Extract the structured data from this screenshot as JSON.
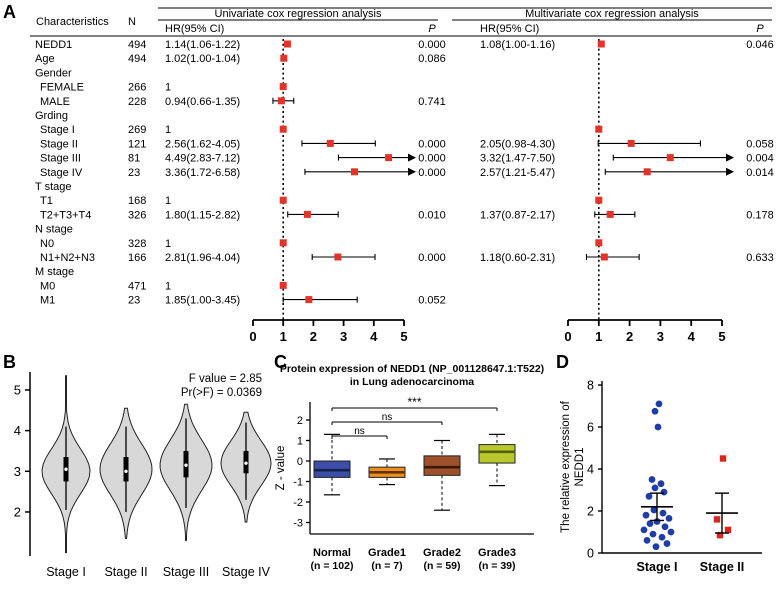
{
  "panel_labels": {
    "a": "A",
    "b": "B",
    "c": "C",
    "d": "D"
  },
  "chart_data": [
    {
      "id": "forest",
      "type": "table",
      "title_uni": "Univariate cox regression analysis",
      "title_multi": "Multivariate cox regression analysis",
      "col_characteristics": "Characteristics",
      "col_n": "N",
      "col_hr": "HR(95% CI)",
      "col_p": "P",
      "axis_ticks": [
        0,
        1,
        2,
        3,
        4,
        5
      ],
      "ref_line": 1,
      "marker_color": "#e2342b",
      "rows": [
        {
          "name": "NEDD1",
          "n": "494",
          "uni_text": "1.14(1.06-1.22)",
          "uni": [
            1.14,
            1.06,
            1.22
          ],
          "uni_p": "0.000",
          "multi_text": "1.08(1.00-1.16)",
          "multi": [
            1.08,
            1.0,
            1.16
          ],
          "multi_p": "0.046"
        },
        {
          "name": "Age",
          "n": "494",
          "uni_text": "1.02(1.00-1.04)",
          "uni": [
            1.02,
            1.0,
            1.04
          ],
          "uni_p": "0.086"
        },
        {
          "name": "Gender",
          "group": true
        },
        {
          "name": "FEMALE",
          "n": "266",
          "uni_text": "1",
          "uni_ref": true,
          "indent": true
        },
        {
          "name": "MALE",
          "n": "228",
          "uni_text": "0.94(0.66-1.35)",
          "uni": [
            0.94,
            0.66,
            1.35
          ],
          "uni_p": "0.741",
          "indent": true
        },
        {
          "name": "Grding",
          "group": true
        },
        {
          "name": "Stage I",
          "n": "269",
          "uni_text": "1",
          "uni_ref": true,
          "multi_ref": true,
          "indent": true
        },
        {
          "name": "Stage II",
          "n": "121",
          "uni_text": "2.56(1.62-4.05)",
          "uni": [
            2.56,
            1.62,
            4.05
          ],
          "uni_p": "0.000",
          "multi_text": "2.05(0.98-4.30)",
          "multi": [
            2.05,
            0.98,
            4.3
          ],
          "multi_p": "0.058",
          "indent": true
        },
        {
          "name": "Stage III",
          "n": "81",
          "uni_text": "4.49(2.83-7.12)",
          "uni": [
            4.49,
            2.83,
            7.12
          ],
          "uni_p": "0.000",
          "multi_text": "3.32(1.47-7.50)",
          "multi": [
            3.32,
            1.47,
            7.5
          ],
          "multi_p": "0.004",
          "indent": true
        },
        {
          "name": "Stage IV",
          "n": "23",
          "uni_text": "3.36(1.72-6.58)",
          "uni": [
            3.36,
            1.72,
            6.58
          ],
          "uni_p": "0.000",
          "multi_text": "2.57(1.21-5.47)",
          "multi": [
            2.57,
            1.21,
            5.47
          ],
          "multi_p": "0.014",
          "indent": true
        },
        {
          "name": "T stage",
          "group": true
        },
        {
          "name": "T1",
          "n": "168",
          "uni_text": "1",
          "uni_ref": true,
          "multi_ref": true,
          "indent": true
        },
        {
          "name": "T2+T3+T4",
          "n": "326",
          "uni_text": "1.80(1.15-2.82)",
          "uni": [
            1.8,
            1.15,
            2.82
          ],
          "uni_p": "0.010",
          "multi_text": "1.37(0.87-2.17)",
          "multi": [
            1.37,
            0.87,
            2.17
          ],
          "multi_p": "0.178",
          "indent": true
        },
        {
          "name": "N stage",
          "group": true
        },
        {
          "name": "N0",
          "n": "328",
          "uni_text": "1",
          "uni_ref": true,
          "multi_ref": true,
          "indent": true
        },
        {
          "name": "N1+N2+N3",
          "n": "166",
          "uni_text": "2.81(1.96-4.04)",
          "uni": [
            2.81,
            1.96,
            4.04
          ],
          "uni_p": "0.000",
          "multi_text": "1.18(0.60-2.31)",
          "multi": [
            1.18,
            0.6,
            2.31
          ],
          "multi_p": "0.633",
          "indent": true
        },
        {
          "name": "M stage",
          "group": true
        },
        {
          "name": "M0",
          "n": "471",
          "uni_text": "1",
          "uni_ref": true,
          "indent": true
        },
        {
          "name": "M1",
          "n": "23",
          "uni_text": "1.85(1.00-3.45)",
          "uni": [
            1.85,
            1.0,
            3.45
          ],
          "uni_p": "0.052",
          "indent": true
        }
      ]
    },
    {
      "id": "violin",
      "type": "violin",
      "annotation_line1": "F value = 2.85",
      "annotation_line2": "Pr(>F) = 0.0369",
      "categories": [
        "Stage I",
        "Stage II",
        "Stage III",
        "Stage IV"
      ],
      "yticks": [
        2,
        3,
        4,
        5
      ],
      "fill": "#d8d8d8",
      "violins": [
        {
          "top": 5.35,
          "bottom": 1.0,
          "mode": 3.0,
          "sigma": 0.55,
          "maxw": 24,
          "q1": 2.75,
          "q3": 3.35,
          "med": 3.05,
          "wlo": 2.05,
          "whi": 4.1
        },
        {
          "top": 4.55,
          "bottom": 1.35,
          "mode": 3.05,
          "sigma": 0.62,
          "maxw": 26,
          "q1": 2.75,
          "q3": 3.35,
          "med": 3.0,
          "wlo": 2.0,
          "whi": 4.1
        },
        {
          "top": 4.65,
          "bottom": 1.3,
          "mode": 3.15,
          "sigma": 0.62,
          "maxw": 26,
          "q1": 2.85,
          "q3": 3.5,
          "med": 3.15,
          "wlo": 2.1,
          "whi": 4.3
        },
        {
          "top": 4.45,
          "bottom": 1.75,
          "mode": 3.2,
          "sigma": 0.55,
          "maxw": 25,
          "q1": 2.95,
          "q3": 3.5,
          "med": 3.2,
          "wlo": 2.3,
          "whi": 4.2
        }
      ]
    },
    {
      "id": "box",
      "type": "box",
      "title_line1": "Protein expression of NEDD1 (NP_001128647.1:T522)",
      "title_line2": "in Lung adenocarcinoma",
      "ylabel": "Z - value",
      "yticks": [
        2,
        1,
        0,
        -1,
        -2,
        -3
      ],
      "categories": [
        "Normal",
        "Grade1",
        "Grade2",
        "Grade3"
      ],
      "counts": [
        "(n = 102)",
        "(n = 7)",
        "(n = 59)",
        "(n = 39)"
      ],
      "colors": [
        "#3c4ea8",
        "#ef8d1f",
        "#9c512a",
        "#b9c92d"
      ],
      "median_colors": [
        "#14204d",
        "#5e3500",
        "#3a1705",
        "#55600a"
      ],
      "boxes": [
        {
          "lo": -1.65,
          "q1": -0.8,
          "med": -0.45,
          "q3": 0.0,
          "hi": 1.3
        },
        {
          "lo": -1.15,
          "q1": -0.8,
          "med": -0.55,
          "q3": -0.3,
          "hi": 0.1
        },
        {
          "lo": -2.4,
          "q1": -0.7,
          "med": -0.3,
          "q3": 0.25,
          "hi": 1.0
        },
        {
          "lo": -1.2,
          "q1": -0.1,
          "med": 0.45,
          "q3": 0.8,
          "hi": 1.3
        }
      ],
      "comparisons": [
        {
          "a": 0,
          "b": 1,
          "label": "ns"
        },
        {
          "a": 0,
          "b": 2,
          "label": "ns"
        },
        {
          "a": 0,
          "b": 3,
          "label": "***"
        }
      ]
    },
    {
      "id": "scatter",
      "type": "scatter",
      "ylabel_line1": "The relative expression of",
      "ylabel_line2": "NEDD1",
      "yticks": [
        0,
        2,
        4,
        6,
        8
      ],
      "groups": [
        {
          "label": "Stage I",
          "color": "#1f3da8",
          "marker": "circle",
          "mean": 2.2,
          "err_lo": 1.55,
          "err_hi": 2.85,
          "points": [
            [
              7.1,
              2
            ],
            [
              6.75,
              -2
            ],
            [
              6.0,
              1
            ],
            [
              3.5,
              -5
            ],
            [
              3.3,
              4
            ],
            [
              3.1,
              -2
            ],
            [
              2.9,
              7
            ],
            [
              2.7,
              -8
            ],
            [
              2.05,
              -3
            ],
            [
              1.9,
              6
            ],
            [
              1.8,
              -11
            ],
            [
              1.65,
              12
            ],
            [
              1.5,
              0
            ],
            [
              1.4,
              -7
            ],
            [
              1.25,
              8
            ],
            [
              1.1,
              -13
            ],
            [
              1.0,
              14
            ],
            [
              0.9,
              -4
            ],
            [
              0.75,
              5
            ],
            [
              0.6,
              -10
            ],
            [
              0.45,
              10
            ],
            [
              0.3,
              -1
            ]
          ]
        },
        {
          "label": "Stage II",
          "color": "#da251c",
          "marker": "square",
          "mean": 1.9,
          "err_lo": 0.95,
          "err_hi": 2.85,
          "points": [
            [
              4.5,
              1
            ],
            [
              1.6,
              -5
            ],
            [
              1.1,
              6
            ],
            [
              0.85,
              -2
            ]
          ]
        }
      ]
    }
  ]
}
